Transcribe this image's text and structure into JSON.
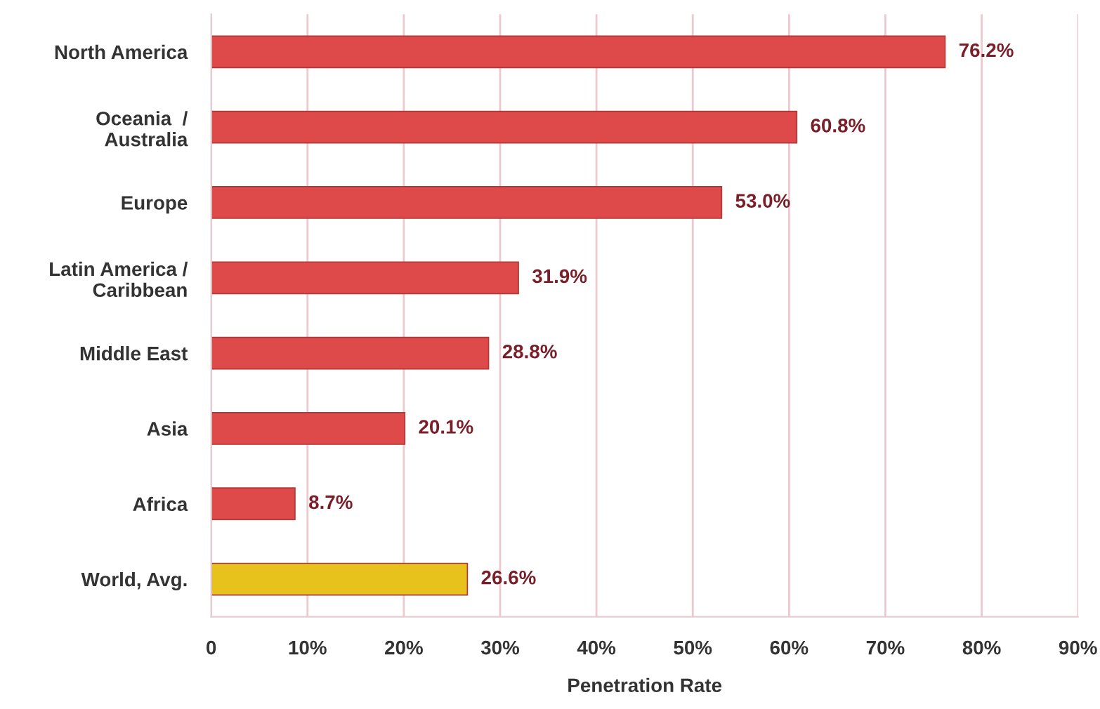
{
  "chart_data": {
    "type": "bar",
    "orientation": "horizontal",
    "xlabel": "Penetration Rate",
    "categories": [
      "North America",
      "Oceania  /\nAustralia",
      "Europe",
      "Latin America /\nCaribbean",
      "Middle East",
      "Asia",
      "Africa",
      "World, Avg."
    ],
    "values": [
      76.2,
      60.8,
      53.0,
      31.9,
      28.8,
      20.1,
      8.7,
      26.6
    ],
    "value_labels": [
      "76.2%",
      "60.8%",
      "53.0%",
      "31.9%",
      "28.8%",
      "20.1%",
      "8.7%",
      "26.6%"
    ],
    "colors": [
      "#de4a4a",
      "#de4a4a",
      "#de4a4a",
      "#de4a4a",
      "#de4a4a",
      "#de4a4a",
      "#de4a4a",
      "#e8c21c"
    ],
    "xlim": [
      0,
      90
    ],
    "xticks": [
      0,
      {
        "value": 10,
        "label": "10%"
      },
      {
        "value": 20,
        "label": "20%"
      },
      {
        "value": 30,
        "label": "30%"
      },
      {
        "value": 40,
        "label": "40%"
      },
      {
        "value": 50,
        "label": "50%"
      },
      {
        "value": 60,
        "label": "60%"
      },
      {
        "value": 70,
        "label": "70%"
      },
      {
        "value": 80,
        "label": "80%"
      },
      {
        "value": 90,
        "label": "90%"
      }
    ],
    "grid": "x"
  }
}
